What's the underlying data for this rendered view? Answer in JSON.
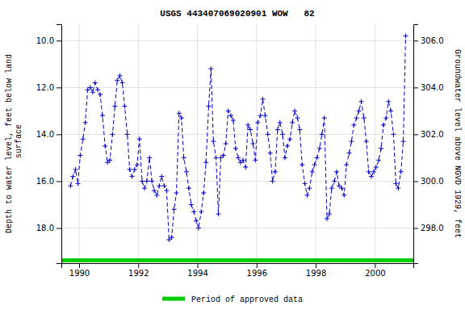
{
  "chart_data": {
    "type": "line",
    "title": "USGS 443407069020901 WOW   82",
    "y_label": "Depth to water level, feet below land\n surface",
    "y2_label": "Groundwater level above NGVD 1929, feet",
    "x": [
      1989.71,
      1989.79,
      1989.88,
      1989.96,
      1990.04,
      1990.13,
      1990.21,
      1990.29,
      1990.38,
      1990.46,
      1990.54,
      1990.63,
      1990.71,
      1990.79,
      1990.88,
      1990.96,
      1991.04,
      1991.13,
      1991.21,
      1991.29,
      1991.38,
      1991.46,
      1991.54,
      1991.63,
      1991.71,
      1991.79,
      1991.88,
      1991.96,
      1992.04,
      1992.13,
      1992.21,
      1992.29,
      1992.38,
      1992.46,
      1992.54,
      1992.63,
      1992.71,
      1992.79,
      1992.88,
      1992.96,
      1993.04,
      1993.13,
      1993.21,
      1993.29,
      1993.38,
      1993.46,
      1993.54,
      1993.63,
      1993.71,
      1993.79,
      1993.88,
      1993.96,
      1994.04,
      1994.13,
      1994.21,
      1994.29,
      1994.38,
      1994.46,
      1994.54,
      1994.63,
      1994.71,
      1994.79,
      1994.88,
      1994.96,
      1995.04,
      1995.13,
      1995.21,
      1995.29,
      1995.38,
      1995.46,
      1995.54,
      1995.63,
      1995.71,
      1995.79,
      1995.88,
      1995.96,
      1996.04,
      1996.13,
      1996.21,
      1996.29,
      1996.38,
      1996.46,
      1996.54,
      1996.63,
      1996.71,
      1996.79,
      1996.88,
      1996.96,
      1997.04,
      1997.13,
      1997.21,
      1997.29,
      1997.38,
      1997.46,
      1997.54,
      1997.63,
      1997.71,
      1997.79,
      1997.88,
      1997.96,
      1998.04,
      1998.13,
      1998.21,
      1998.29,
      1998.38,
      1998.46,
      1998.54,
      1998.63,
      1998.71,
      1998.79,
      1998.88,
      1998.96,
      1999.04,
      1999.13,
      1999.21,
      1999.29,
      1999.38,
      1999.46,
      1999.54,
      1999.63,
      1999.71,
      1999.79,
      1999.88,
      1999.96,
      2000.04,
      2000.13,
      2000.21,
      2000.29,
      2000.38,
      2000.46,
      2000.54,
      2000.63,
      2000.71,
      2000.79,
      2000.88,
      2000.96,
      2001.04
    ],
    "series": [
      {
        "color": "#0000cc",
        "marker": "plus",
        "line_style": "dashed",
        "values": [
          16.2,
          15.8,
          15.5,
          16.1,
          14.9,
          14.2,
          13.5,
          12.1,
          12.0,
          12.2,
          11.8,
          12.1,
          12.3,
          13.2,
          14.5,
          15.2,
          15.1,
          14.0,
          12.8,
          11.7,
          11.5,
          11.8,
          12.8,
          14.0,
          15.5,
          15.8,
          15.5,
          15.3,
          14.2,
          16.0,
          16.3,
          16.0,
          15.0,
          16.0,
          16.4,
          16.6,
          16.2,
          15.8,
          16.2,
          16.4,
          18.5,
          18.4,
          17.2,
          16.5,
          13.1,
          13.3,
          15.0,
          15.6,
          16.3,
          17.0,
          17.3,
          17.7,
          18.0,
          17.3,
          16.5,
          15.2,
          12.8,
          11.2,
          14.3,
          15.0,
          17.4,
          15.0,
          14.9,
          14.4,
          13.0,
          13.2,
          13.4,
          14.6,
          15.0,
          15.2,
          15.1,
          15.4,
          13.6,
          13.8,
          14.4,
          15.1,
          13.5,
          13.2,
          12.5,
          13.2,
          14.0,
          14.8,
          16.0,
          15.6,
          13.8,
          13.5,
          14.0,
          15.0,
          14.5,
          14.2,
          13.5,
          13.0,
          13.3,
          13.8,
          15.3,
          16.1,
          16.6,
          16.3,
          15.6,
          15.3,
          15.0,
          14.6,
          14.0,
          13.3,
          17.6,
          17.4,
          16.3,
          16.0,
          15.6,
          16.2,
          16.3,
          16.6,
          15.3,
          14.8,
          14.3,
          13.6,
          13.3,
          13.0,
          12.6,
          13.3,
          14.3,
          15.6,
          15.8,
          15.6,
          15.4,
          15.1,
          14.6,
          13.6,
          13.3,
          12.6,
          13.0,
          14.0,
          16.1,
          16.3,
          15.6,
          14.3,
          9.8
        ]
      }
    ],
    "xlim": [
      1989.4,
      2001.3
    ],
    "xticks": [
      1990,
      1992,
      1994,
      1996,
      1998,
      2000
    ],
    "ylim": [
      19.5,
      9.3
    ],
    "yticks": [
      {
        "value": 10,
        "label": "10.0"
      },
      {
        "value": 12,
        "label": "12.0"
      },
      {
        "value": 14,
        "label": "14.0"
      },
      {
        "value": 16,
        "label": "16.0"
      },
      {
        "value": 18,
        "label": "18.0"
      }
    ],
    "y2lim": [
      296.5,
      306.7
    ],
    "y2ticks": [
      {
        "value": 298,
        "label": "298.0"
      },
      {
        "value": 300,
        "label": "300.0"
      },
      {
        "value": 302,
        "label": "302.0"
      },
      {
        "value": 304,
        "label": "304.0"
      },
      {
        "value": 306,
        "label": "306.0"
      }
    ],
    "grid": true,
    "annotations": [
      {
        "text": "Period of approved data",
        "color": "#00cc00"
      }
    ]
  }
}
